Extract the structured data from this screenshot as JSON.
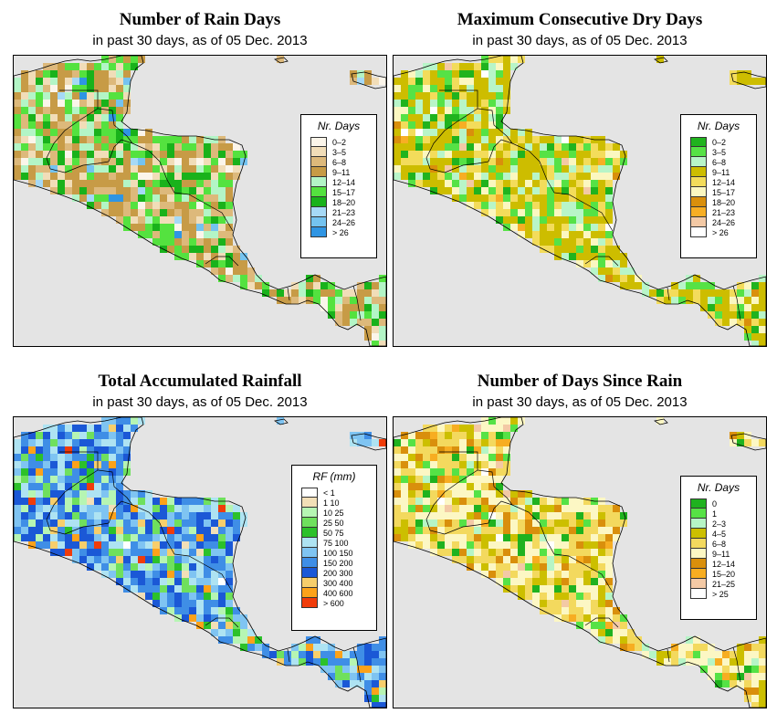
{
  "panels": [
    {
      "title": "Number of Rain Days",
      "subtitle": "in past 30 days, as of  05 Dec. 2013",
      "legend_title": "Nr. Days",
      "legend": [
        {
          "label": "0–2",
          "color": "#fbf5ea"
        },
        {
          "label": "3–5",
          "color": "#f1ddb8"
        },
        {
          "label": "6–8",
          "color": "#ddb97b"
        },
        {
          "label": "9–11",
          "color": "#c79b46"
        },
        {
          "label": "12–14",
          "color": "#b3f5c6"
        },
        {
          "label": "15–17",
          "color": "#54e23f"
        },
        {
          "label": "18–20",
          "color": "#19b21b"
        },
        {
          "label": "21–23",
          "color": "#a6d9f6"
        },
        {
          "label": "24–26",
          "color": "#74c3f0"
        },
        {
          "label": "> 26",
          "color": "#2f95e3"
        }
      ],
      "palette_weights": [
        1,
        3,
        4,
        8,
        3,
        5,
        3,
        0.4,
        0.3,
        0.2
      ]
    },
    {
      "title": "Maximum Consecutive Dry Days",
      "subtitle": "in past 30 days, as of  05 Dec. 2013",
      "legend_title": "Nr. Days",
      "legend": [
        {
          "label": "0–2",
          "color": "#20b31e"
        },
        {
          "label": "3–5",
          "color": "#56e246"
        },
        {
          "label": "6–8",
          "color": "#b8f5c8"
        },
        {
          "label": "9–11",
          "color": "#cdbd00"
        },
        {
          "label": "12–14",
          "color": "#f3dc5b"
        },
        {
          "label": "15–17",
          "color": "#fbf7c0"
        },
        {
          "label": "18–20",
          "color": "#d98f0c"
        },
        {
          "label": "21–23",
          "color": "#f7ae24"
        },
        {
          "label": "24–26",
          "color": "#f3c9a5"
        },
        {
          "label": "> 26",
          "color": "#ffffff"
        }
      ],
      "palette_weights": [
        2,
        3,
        3,
        9,
        4,
        2,
        0.3,
        0.3,
        0.2,
        0.2
      ]
    },
    {
      "title": "Total Accumulated Rainfall",
      "subtitle": "in past 30 days, as of  05 Dec. 2013",
      "legend_title": "RF (mm)",
      "legend": [
        {
          "label": "< 1",
          "color": "#ffffff"
        },
        {
          "label": "1   10",
          "color": "#f2dfb7"
        },
        {
          "label": "10   25",
          "color": "#b6f5b3"
        },
        {
          "label": "25   50",
          "color": "#6fe05d"
        },
        {
          "label": "50   75",
          "color": "#2cc12a"
        },
        {
          "label": "75   100",
          "color": "#aee3f2"
        },
        {
          "label": "100   150",
          "color": "#7fc4f2"
        },
        {
          "label": "150   200",
          "color": "#3f8ee6"
        },
        {
          "label": "200   300",
          "color": "#1b58d6"
        },
        {
          "label": "300   400",
          "color": "#f7ce6b"
        },
        {
          "label": "400   600",
          "color": "#fca21a"
        },
        {
          "label": "> 600",
          "color": "#f03c0a"
        }
      ],
      "palette_weights": [
        0.2,
        0.3,
        2,
        2,
        1,
        3,
        4,
        6,
        5,
        0.8,
        0.6,
        0.3
      ]
    },
    {
      "title": "Number of Days Since Rain",
      "subtitle": "in past 30 days, as of  05 Dec. 2013",
      "legend_title": "Nr. Days",
      "legend": [
        {
          "label": "0",
          "color": "#1fb21f"
        },
        {
          "label": "1",
          "color": "#56e246"
        },
        {
          "label": "2–3",
          "color": "#b6f5c6"
        },
        {
          "label": "4–5",
          "color": "#ccbf00"
        },
        {
          "label": "6–8",
          "color": "#f3d95e"
        },
        {
          "label": "9–11",
          "color": "#fcf7c4"
        },
        {
          "label": "12–14",
          "color": "#d98f0c"
        },
        {
          "label": "15–20",
          "color": "#f7ad21"
        },
        {
          "label": "21–25",
          "color": "#f3c9a5"
        },
        {
          "label": "> 25",
          "color": "#ffffff"
        }
      ],
      "palette_weights": [
        1,
        2,
        1,
        4,
        8,
        8,
        2,
        1,
        0.3,
        0.2
      ]
    }
  ]
}
